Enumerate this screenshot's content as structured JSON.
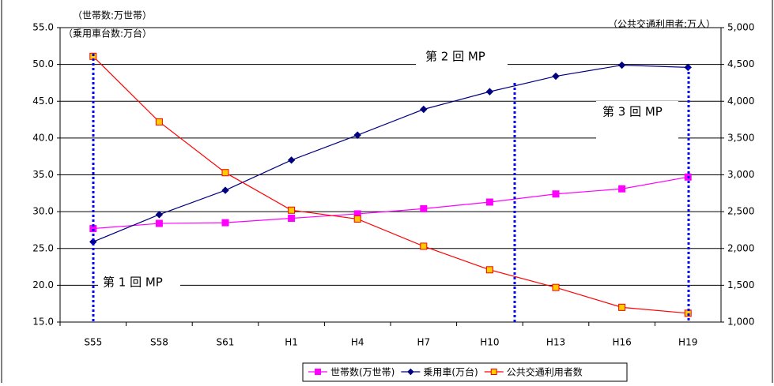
{
  "chart_data": {
    "type": "line",
    "categories": [
      "S55",
      "S58",
      "S61",
      "H1",
      "H4",
      "H7",
      "H10",
      "H13",
      "H16",
      "H19"
    ],
    "series": [
      {
        "name": "世帯数(万世帯)",
        "color": "#ff00ff",
        "marker": "square",
        "values": [
          27.7,
          28.4,
          28.5,
          29.1,
          29.7,
          30.4,
          31.3,
          32.4,
          33.1,
          34.7
        ]
      },
      {
        "name": "乗用車(万台)",
        "color": "#000080",
        "marker": "diamond",
        "values": [
          25.9,
          29.6,
          32.9,
          37.0,
          40.4,
          43.9,
          46.3,
          48.4,
          49.9,
          49.6
        ]
      },
      {
        "name": "公共交通利用者数",
        "color": "#ff0000",
        "marker": "square",
        "marker_fill": "#ffcc00",
        "axis": "y2",
        "values": [
          4610,
          3720,
          3030,
          2520,
          2400,
          2030,
          1710,
          1470,
          1200,
          1120
        ]
      }
    ],
    "ylim": [
      15,
      55
    ],
    "yticks": [
      {
        "value": 15,
        "label": "15.0"
      },
      {
        "value": 20,
        "label": "20.0"
      },
      {
        "value": 25,
        "label": "25.0"
      },
      {
        "value": 30,
        "label": "30.0"
      },
      {
        "value": 35,
        "label": "35.0"
      },
      {
        "value": 40,
        "label": "40.0"
      },
      {
        "value": 45,
        "label": "45.0"
      },
      {
        "value": 50,
        "label": "50.0"
      },
      {
        "value": 55,
        "label": "55.0"
      }
    ],
    "y2lim": [
      1000,
      5000
    ],
    "y2ticks": [
      {
        "value": 1000,
        "label": "1,000"
      },
      {
        "value": 1500,
        "label": "1,500"
      },
      {
        "value": 2000,
        "label": "2,000"
      },
      {
        "value": 2500,
        "label": "2,500"
      },
      {
        "value": 3000,
        "label": "3,000"
      },
      {
        "value": 3500,
        "label": "3,500"
      },
      {
        "value": 4000,
        "label": "4,000"
      },
      {
        "value": 4500,
        "label": "4,500"
      },
      {
        "value": 5000,
        "label": "5,000"
      }
    ],
    "grid": true,
    "annotations": [
      "（世帯数:万世帯）",
      "（乗用車台数:万台）",
      "（公共交通利用者:万人）",
      "第 2 回 MP",
      "第 3 回 MP",
      "第 1 回 MP"
    ],
    "legend": "bottom"
  }
}
